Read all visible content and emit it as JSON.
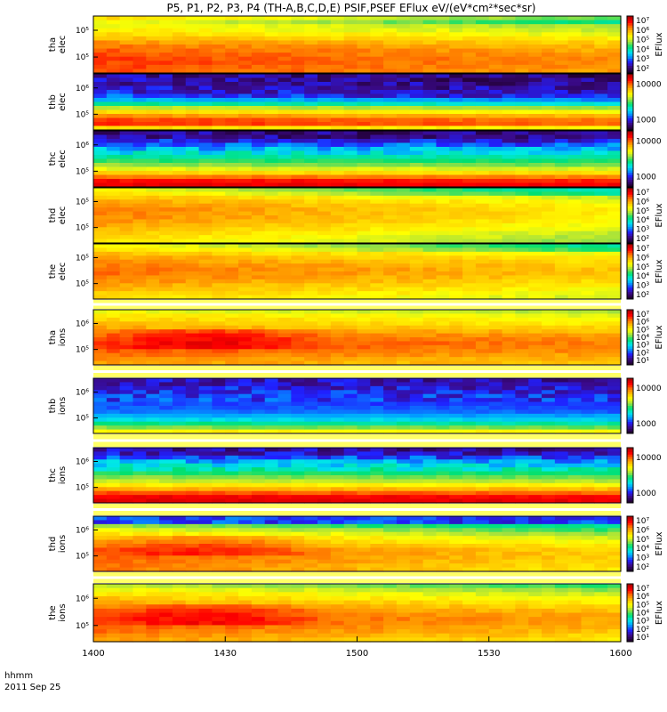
{
  "title": "P5, P1, P2, P3, P4 (TH-A,B,C,D,E) PSIF,PSEF EFlux eV/(eV*cm²*sec*sr)",
  "footer": {
    "hhmm": "hhmm",
    "date": "2011 Sep 25"
  },
  "colorbar_unit": "EFlux",
  "chart_data": {
    "type": "heatmap",
    "x_ticks": [
      "1400",
      "1430",
      "1500",
      "1530",
      "1600"
    ],
    "x_range_minutes": [
      0,
      120
    ],
    "colormap": [
      "#220033",
      "#3a0a8a",
      "#2020ff",
      "#00a0ff",
      "#00e8e8",
      "#00e070",
      "#a0e040",
      "#ffff00",
      "#ffc000",
      "#ff7000",
      "#ff0000",
      "#b00000"
    ],
    "panels": [
      {
        "name": "tha elec",
        "label": [
          "tha",
          "elec"
        ],
        "yticks": [
          "10⁵",
          "10⁵"
        ],
        "cbar_ticks": [
          "10⁷",
          "10⁶",
          "10⁵",
          "10⁴",
          "10³",
          "10²"
        ],
        "cbar_label": "EFlux",
        "profile": [
          0.72,
          0.62,
          0.66,
          0.72,
          0.8,
          0.84,
          0.86,
          0.86,
          0.84
        ],
        "trend": -0.08,
        "top_dark": false,
        "bands": "spread"
      },
      {
        "name": "thb elec",
        "label": [
          "thb",
          "elec"
        ],
        "yticks": [
          "10⁶",
          "10⁵"
        ],
        "cbar_ticks": [
          "10000",
          "1000"
        ],
        "cbar_label": "",
        "profile": [
          0.1,
          0.12,
          0.14,
          0.18,
          0.35,
          0.62,
          0.78,
          0.92,
          0.6
        ],
        "trend": -0.05,
        "top_dark": true,
        "bands": "stripe"
      },
      {
        "name": "thc elec",
        "label": [
          "thc",
          "elec"
        ],
        "yticks": [
          "10⁶",
          "10⁵"
        ],
        "cbar_ticks": [
          "10000",
          "1000"
        ],
        "cbar_label": "",
        "profile": [
          0.08,
          0.1,
          0.25,
          0.35,
          0.45,
          0.55,
          0.7,
          0.9,
          0.95
        ],
        "trend": -0.02,
        "top_dark": true,
        "bands": "stripe"
      },
      {
        "name": "thd elec",
        "label": [
          "thd",
          "elec"
        ],
        "yticks": [
          "10⁵",
          "10⁵"
        ],
        "cbar_ticks": [
          "10⁷",
          "10⁶",
          "10⁵",
          "10⁴",
          "10³",
          "10²"
        ],
        "cbar_label": "EFlux",
        "profile": [
          0.62,
          0.7,
          0.76,
          0.8,
          0.8,
          0.78,
          0.74,
          0.7,
          0.66
        ],
        "trend": -0.14,
        "top_dark": false,
        "bands": "spread"
      },
      {
        "name": "the elec",
        "label": [
          "the",
          "elec"
        ],
        "yticks": [
          "10⁵",
          "10⁵"
        ],
        "cbar_ticks": [
          "10⁷",
          "10⁶",
          "10⁵",
          "10⁴",
          "10³",
          "10²"
        ],
        "cbar_label": "EFlux",
        "profile": [
          0.62,
          0.7,
          0.76,
          0.8,
          0.82,
          0.8,
          0.76,
          0.72,
          0.68
        ],
        "trend": -0.1,
        "top_dark": false,
        "bands": "spread"
      },
      {
        "name": "tha ions",
        "label": [
          "tha",
          "ions"
        ],
        "yticks": [
          "10⁶",
          "10⁵"
        ],
        "cbar_ticks": [
          "10⁷",
          "10⁶",
          "10⁵",
          "10⁴",
          "10³",
          "10²",
          "10¹"
        ],
        "cbar_label": "EFlux",
        "profile": [
          0.6,
          0.68,
          0.72,
          0.78,
          0.84,
          0.86,
          0.84,
          0.8,
          0.76
        ],
        "trend": -0.06,
        "top_dark": false,
        "bands": "ion"
      },
      {
        "name": "thb ions",
        "label": [
          "thb",
          "ions"
        ],
        "yticks": [
          "10⁶",
          "10⁵"
        ],
        "cbar_ticks": [
          "10000",
          "1000"
        ],
        "cbar_label": "",
        "profile": [
          0.12,
          0.15,
          0.18,
          0.2,
          0.22,
          0.25,
          0.35,
          0.5,
          0.72
        ],
        "trend": -0.02,
        "top_dark": true,
        "bands": "stripe"
      },
      {
        "name": "thc ions",
        "label": [
          "thc",
          "ions"
        ],
        "yticks": [
          "10⁶",
          "10⁵"
        ],
        "cbar_ticks": [
          "10000",
          "1000"
        ],
        "cbar_label": "",
        "profile": [
          0.1,
          0.14,
          0.3,
          0.4,
          0.5,
          0.6,
          0.75,
          0.92,
          0.96
        ],
        "trend": -0.02,
        "top_dark": true,
        "bands": "stripe"
      },
      {
        "name": "thd ions",
        "label": [
          "thd",
          "ions"
        ],
        "yticks": [
          "10⁶",
          "10⁵"
        ],
        "cbar_ticks": [
          "10⁷",
          "10⁶",
          "10⁵",
          "10⁴",
          "10³",
          "10²"
        ],
        "cbar_label": "EFlux",
        "profile": [
          0.3,
          0.5,
          0.62,
          0.72,
          0.78,
          0.84,
          0.84,
          0.82,
          0.8
        ],
        "trend": -0.14,
        "top_dark": true,
        "bands": "ion"
      },
      {
        "name": "the ions",
        "label": [
          "the",
          "ions"
        ],
        "yticks": [
          "10⁶",
          "10⁵"
        ],
        "cbar_ticks": [
          "10⁷",
          "10⁶",
          "10⁵",
          "10⁴",
          "10³",
          "10²",
          "10¹"
        ],
        "cbar_label": "EFlux",
        "profile": [
          0.55,
          0.65,
          0.72,
          0.78,
          0.84,
          0.86,
          0.84,
          0.8,
          0.76
        ],
        "trend": -0.1,
        "top_dark": false,
        "bands": "ion"
      }
    ]
  }
}
